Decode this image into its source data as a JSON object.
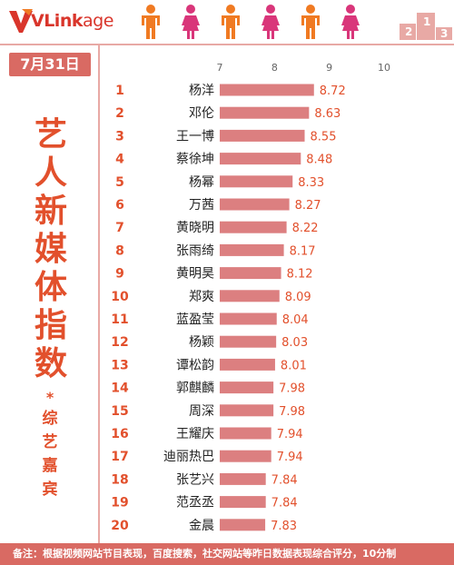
{
  "header": {
    "logo_text_v": "VLink",
    "logo_text_rest": "age",
    "colors": {
      "accent": "#d96a63",
      "orange": "#f07a22",
      "pink": "#d9367a",
      "brand": "#d9352b"
    }
  },
  "date": "7月31日",
  "side_title_chars": [
    "艺",
    "人",
    "新",
    "媒",
    "体",
    "指",
    "数"
  ],
  "side_star": "*",
  "side_sub_chars": [
    "综",
    "艺",
    "嘉",
    "宾"
  ],
  "footer_text": "备注：根据视频网站节目表现，百度搜索，社交网站等昨日数据表现综合评分，10分制",
  "chart_data": {
    "type": "bar",
    "orientation": "horizontal",
    "xlim": [
      7,
      10
    ],
    "xticks": [
      7,
      8,
      9,
      10
    ],
    "bar_color": "#dc7f80",
    "label_color": "#e2502c",
    "ranks": [
      1,
      2,
      3,
      4,
      5,
      6,
      7,
      8,
      9,
      10,
      11,
      12,
      13,
      14,
      15,
      16,
      17,
      18,
      19,
      20
    ],
    "categories": [
      "杨洋",
      "邓伦",
      "王一博",
      "蔡徐坤",
      "杨幂",
      "万茜",
      "黄晓明",
      "张雨绮",
      "黄明昊",
      "郑爽",
      "蓝盈莹",
      "杨颖",
      "谭松韵",
      "郭麒麟",
      "周深",
      "王耀庆",
      "迪丽热巴",
      "张艺兴",
      "范丞丞",
      "金晨"
    ],
    "values": [
      8.72,
      8.63,
      8.55,
      8.48,
      8.33,
      8.27,
      8.22,
      8.17,
      8.12,
      8.09,
      8.04,
      8.03,
      8.01,
      7.98,
      7.98,
      7.94,
      7.94,
      7.84,
      7.84,
      7.83
    ],
    "value_labels": [
      "8.72",
      "8.63",
      "8.55",
      "8.48",
      "8.33",
      "8.27",
      "8.22",
      "8.17",
      "8.12",
      "8.09",
      "8.04",
      "8.03",
      "8.01",
      "7.98",
      "7.98",
      "7.94",
      "7.94",
      "7.84",
      "7.84",
      "7.83"
    ]
  }
}
